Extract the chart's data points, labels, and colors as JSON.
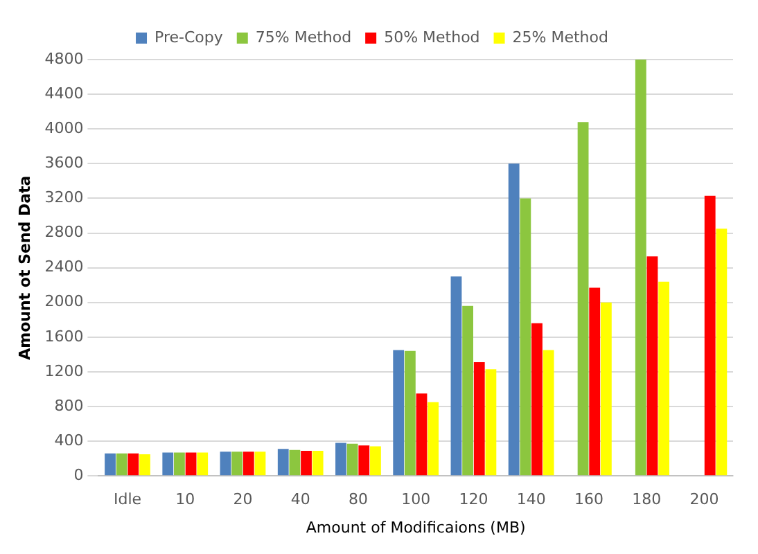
{
  "chart_data": {
    "type": "bar",
    "xlabel": "Amount of Modificaions (MB)",
    "ylabel": "Amount ot Send Data",
    "categories": [
      "Idle",
      "10",
      "20",
      "40",
      "80",
      "100",
      "120",
      "140",
      "160",
      "180",
      "200"
    ],
    "series": [
      {
        "name": "Pre-Copy",
        "color": "#4f81bd",
        "values": [
          260,
          270,
          280,
          310,
          380,
          1450,
          2300,
          3600,
          0,
          0,
          0
        ]
      },
      {
        "name": "75% Method",
        "color": "#8cc63f",
        "values": [
          260,
          270,
          280,
          300,
          370,
          1440,
          1960,
          3200,
          4080,
          4800,
          0
        ]
      },
      {
        "name": "50% Method",
        "color": "#ff0000",
        "values": [
          260,
          270,
          280,
          290,
          350,
          950,
          1310,
          1760,
          2170,
          2530,
          3230
        ]
      },
      {
        "name": "25% Method",
        "color": "#ffff00",
        "values": [
          250,
          270,
          280,
          290,
          340,
          850,
          1230,
          1450,
          2000,
          2240,
          2850
        ]
      }
    ],
    "ylim": [
      0,
      4800
    ],
    "yticks": [
      0,
      400,
      800,
      1200,
      1600,
      2000,
      2400,
      2800,
      3200,
      3600,
      4000,
      4400,
      4800
    ],
    "grid": "y",
    "legend": "top"
  }
}
